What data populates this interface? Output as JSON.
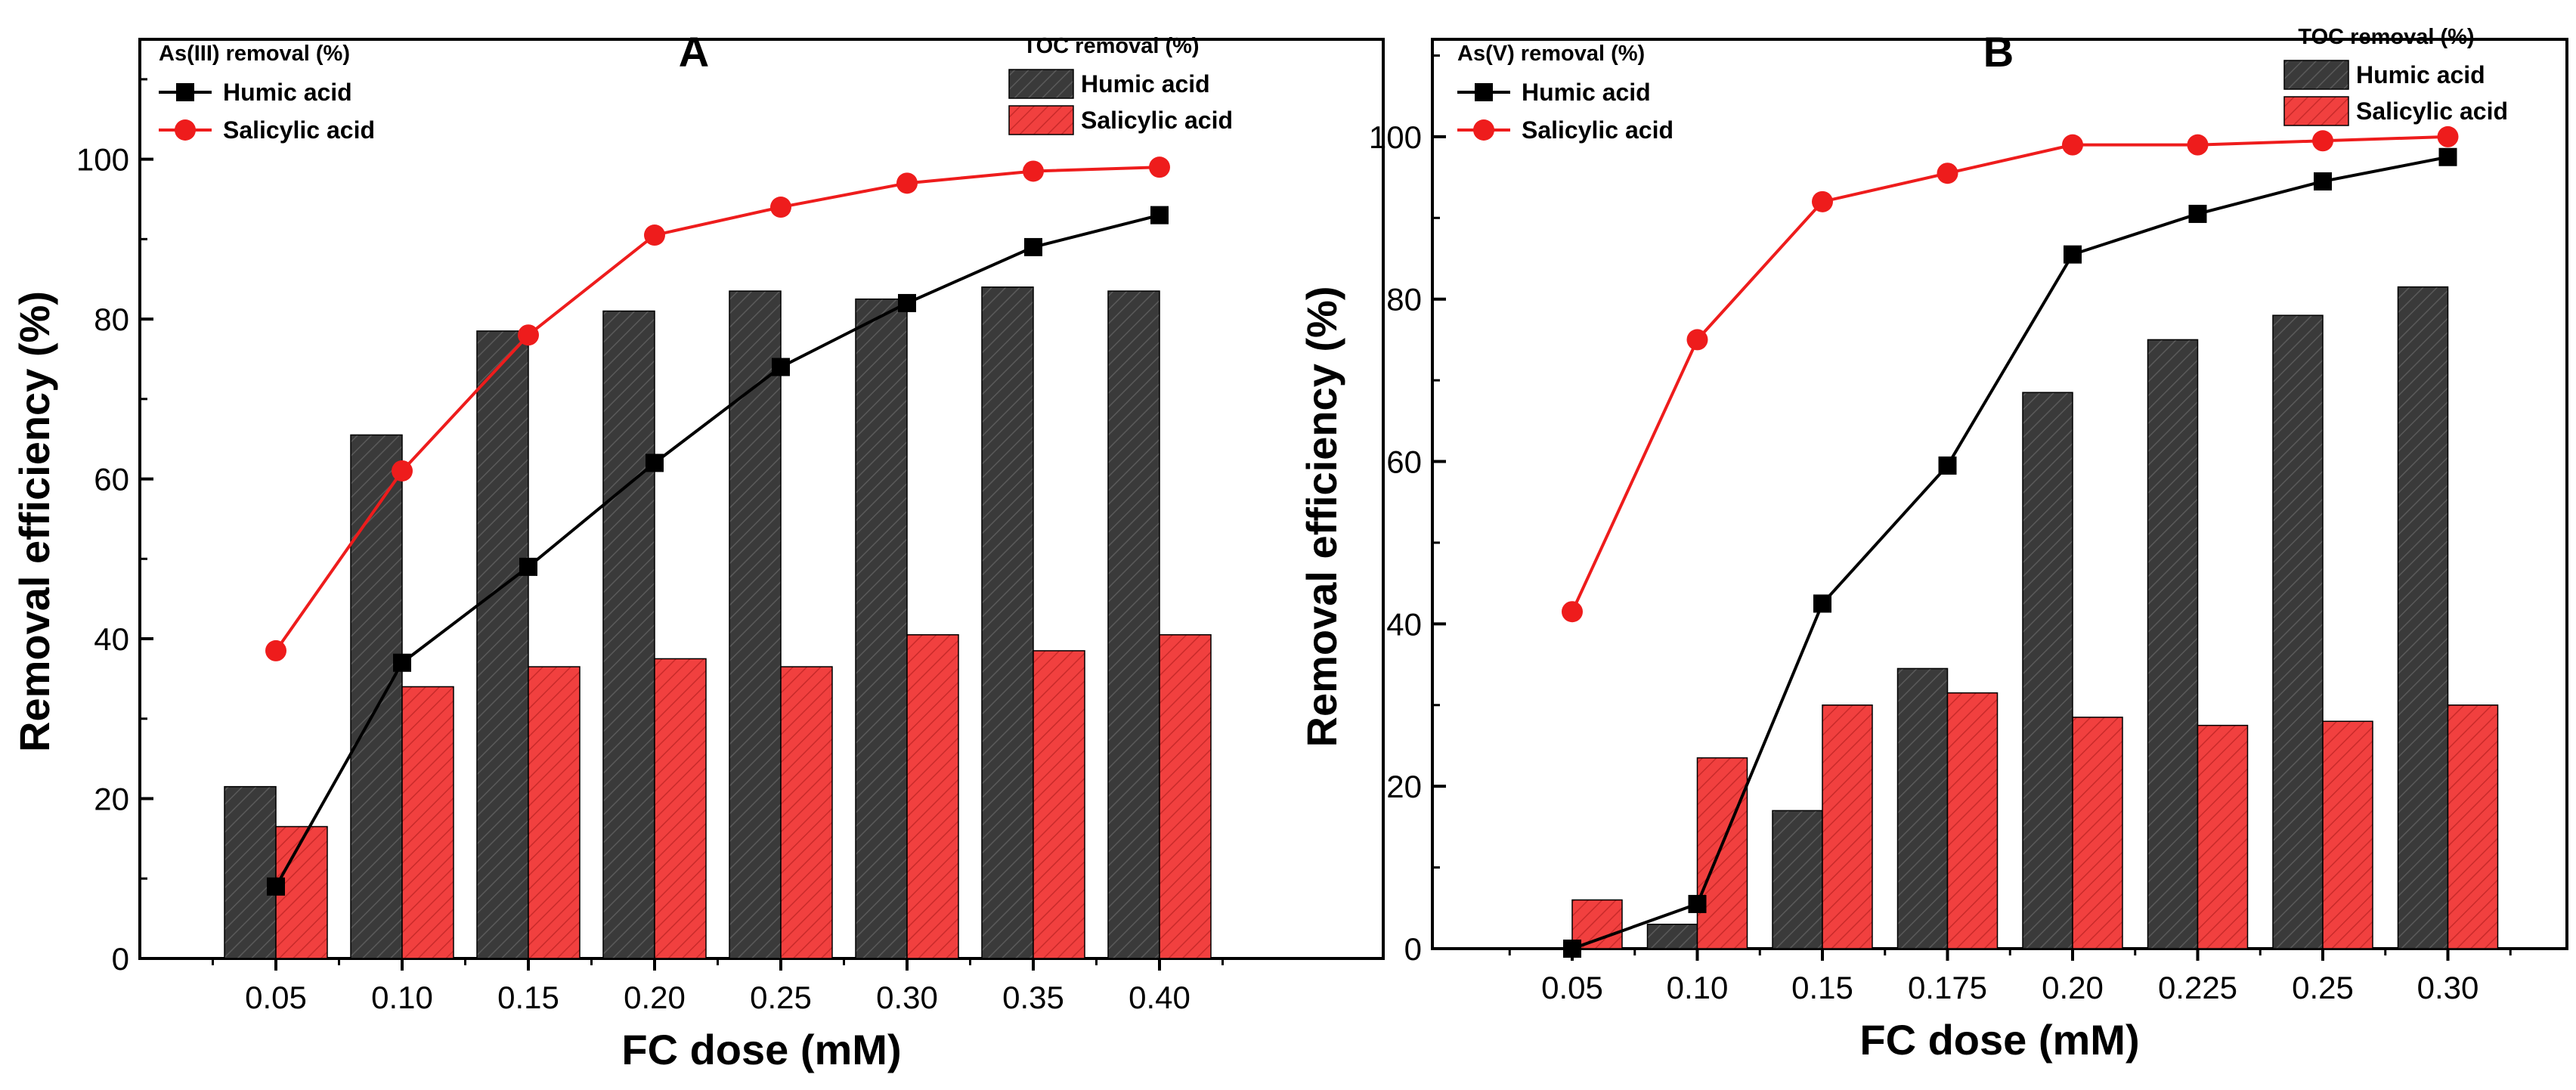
{
  "figure": {
    "colors": {
      "humic": "#3a3a3a",
      "salicylic": "#f1403f",
      "line_humic": "#000000",
      "line_salicylic": "#ee1c1c"
    }
  },
  "chart_data": [
    {
      "type": "bar+line",
      "panel_label": "A",
      "xlabel": "FC dose (mM)",
      "ylabel": "Removal efficiency (%)",
      "ylim": [
        0,
        115
      ],
      "yticks": [
        "0",
        "20",
        "40",
        "60",
        "80",
        "100"
      ],
      "categories": [
        "0.05",
        "0.10",
        "0.15",
        "0.20",
        "0.25",
        "0.30",
        "0.35",
        "0.40"
      ],
      "line_legend_title": "As(III) removal (%)",
      "bar_legend_title": "TOC removal (%)",
      "bar_series": [
        {
          "name": "Humic acid",
          "values": [
            21.5,
            65.5,
            78.5,
            81,
            83.5,
            82.5,
            84,
            83.5
          ]
        },
        {
          "name": "Salicylic acid",
          "values": [
            16.5,
            34,
            36.5,
            37.5,
            36.5,
            40.5,
            38.5,
            40.5
          ]
        }
      ],
      "line_series": [
        {
          "name": "Humic acid",
          "values": [
            9,
            37,
            49,
            62,
            74,
            82,
            89,
            93
          ]
        },
        {
          "name": "Salicylic acid",
          "values": [
            38.5,
            61,
            78,
            90.5,
            94,
            97,
            98.5,
            99
          ]
        }
      ]
    },
    {
      "type": "bar+line",
      "panel_label": "B",
      "xlabel": "FC dose (mM)",
      "ylabel": "Removal efficiency (%)",
      "ylim": [
        0,
        112
      ],
      "yticks": [
        "0",
        "20",
        "40",
        "60",
        "80",
        "100"
      ],
      "categories": [
        "0.05",
        "0.10",
        "0.15",
        "0.175",
        "0.20",
        "0.225",
        "0.25",
        "0.30"
      ],
      "line_legend_title": "As(V) removal (%)",
      "bar_legend_title": "TOC removal (%)",
      "bar_series": [
        {
          "name": "Humic acid",
          "values": [
            0,
            3,
            17,
            34.5,
            68.5,
            75,
            78,
            81.5
          ]
        },
        {
          "name": "Salicylic acid",
          "values": [
            6,
            23.5,
            30,
            31.5,
            28.5,
            27.5,
            28,
            30
          ]
        }
      ],
      "line_series": [
        {
          "name": "Humic acid",
          "values": [
            0,
            5.5,
            42.5,
            59.5,
            85.5,
            90.5,
            94.5,
            97.5
          ]
        },
        {
          "name": "Salicylic acid",
          "values": [
            41.5,
            75,
            92,
            95.5,
            99,
            99,
            99.5,
            100
          ]
        }
      ]
    }
  ]
}
